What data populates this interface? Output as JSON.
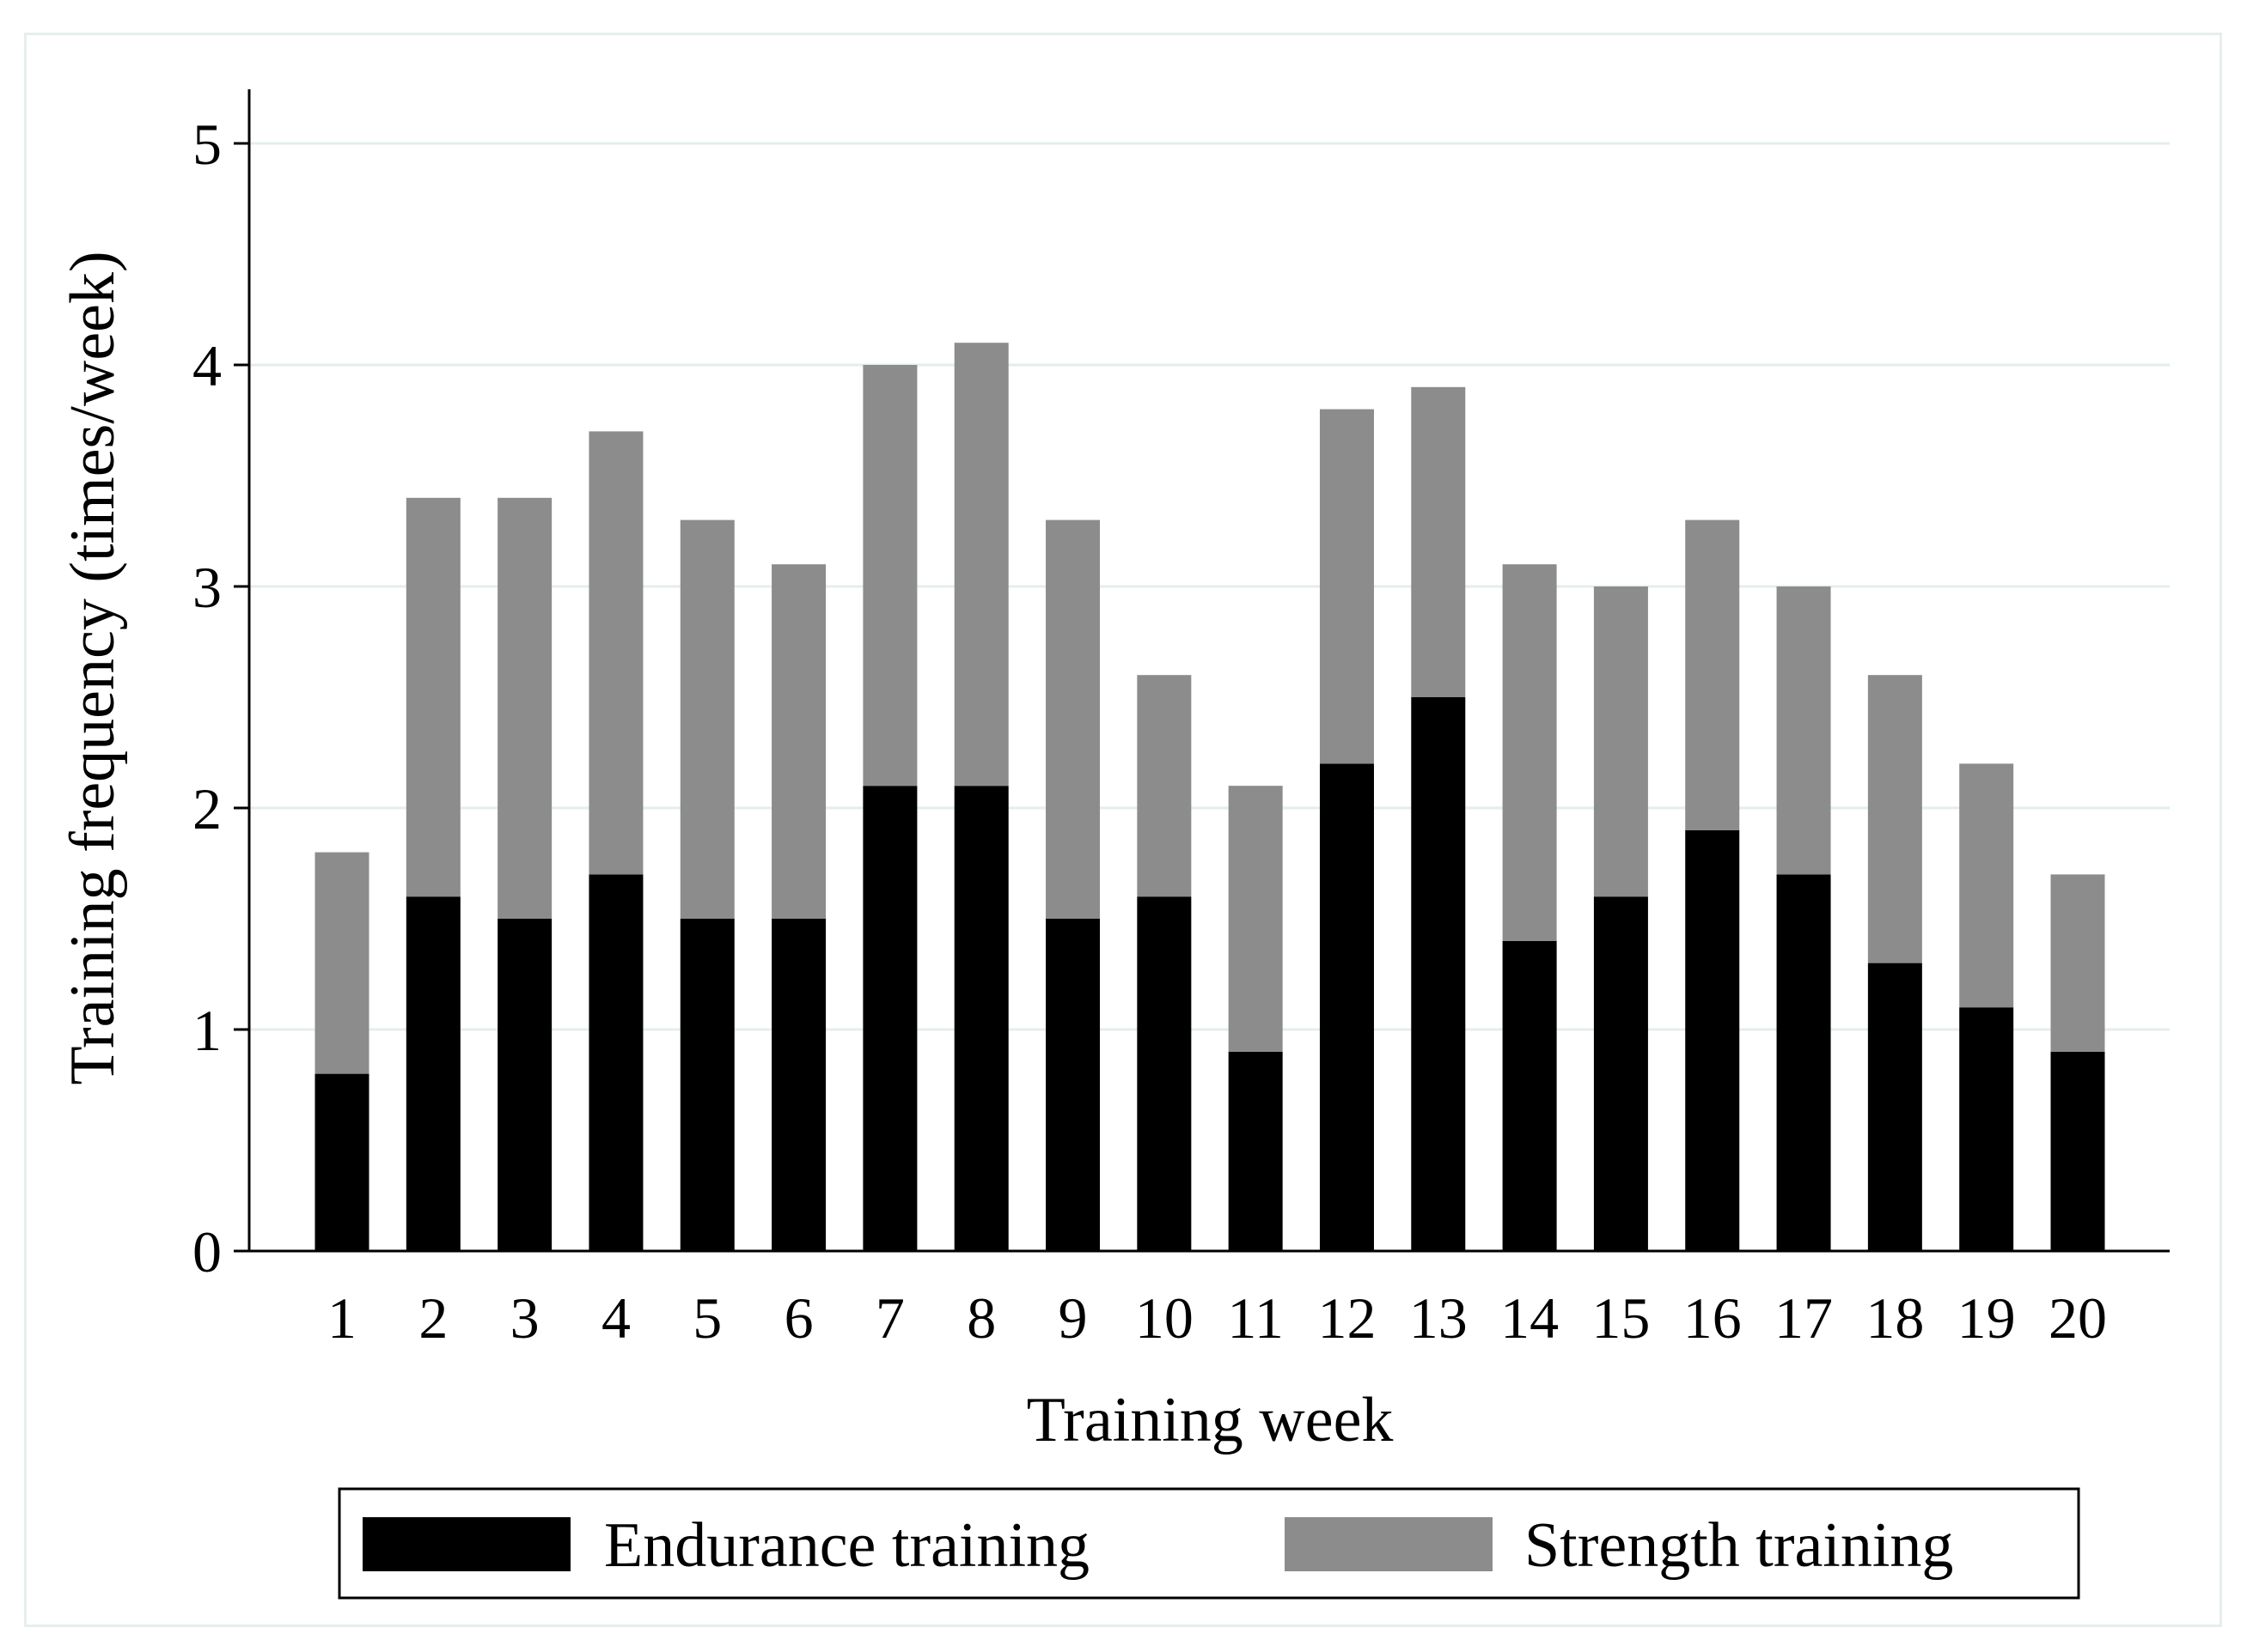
{
  "chart_data": {
    "type": "bar",
    "stacked": true,
    "title": "",
    "xlabel": "Training week",
    "ylabel": "Training frequency (times/week)",
    "ylim": [
      0,
      5
    ],
    "yticks": [
      "0",
      "1",
      "2",
      "3",
      "4",
      "5"
    ],
    "categories": [
      "1",
      "2",
      "3",
      "4",
      "5",
      "6",
      "7",
      "8",
      "9",
      "10",
      "11",
      "12",
      "13",
      "14",
      "15",
      "16",
      "17",
      "18",
      "19",
      "20"
    ],
    "grid": true,
    "legend_position": "bottom",
    "series": [
      {
        "name": "Endurance training",
        "color": "#000000",
        "values": [
          0.8,
          1.6,
          1.5,
          1.7,
          1.5,
          1.5,
          2.1,
          2.1,
          1.5,
          1.6,
          0.9,
          2.2,
          2.5,
          1.4,
          1.6,
          1.9,
          1.7,
          1.3,
          1.1,
          0.9
        ]
      },
      {
        "name": "Strength training",
        "color": "#8c8c8c",
        "values": [
          1.0,
          1.8,
          1.9,
          2.0,
          1.8,
          1.6,
          1.9,
          2.0,
          1.8,
          1.0,
          1.2,
          1.6,
          1.4,
          1.7,
          1.4,
          1.4,
          1.3,
          1.3,
          1.1,
          0.8
        ]
      }
    ],
    "gridline_color": "#e4eeee"
  }
}
